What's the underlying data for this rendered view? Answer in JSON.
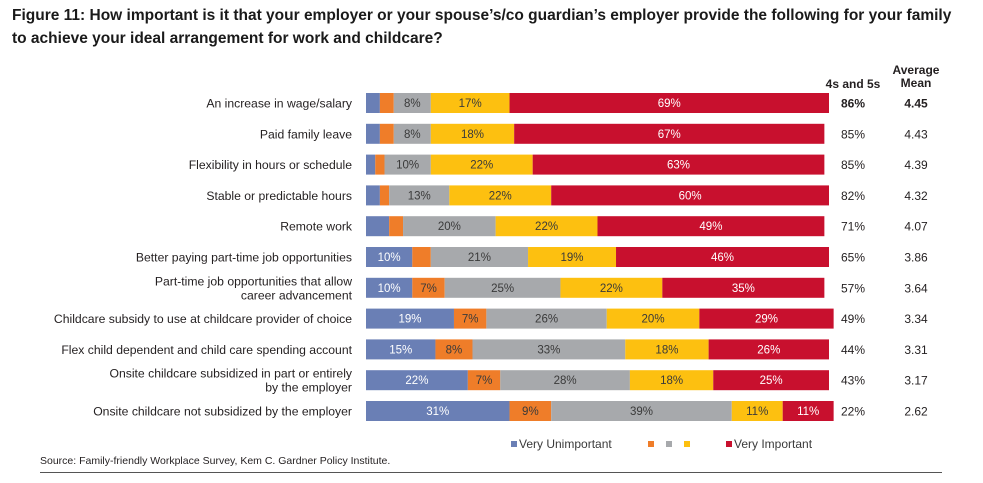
{
  "title": "Figure 11: How important is it that your employer or your spouse’s/co guardian’s employer provide the following for your family to achieve your ideal arrangement for work and childcare?",
  "source": "Source: Family-friendly Workplace Survey, Kem C. Gardner Policy Institute.",
  "colors": {
    "level1": "#6a7fb5",
    "level2": "#ef7d29",
    "level3": "#a7a9ac",
    "level4": "#fdc010",
    "level5": "#c8102e"
  },
  "chart_data": {
    "type": "bar",
    "orientation": "horizontal",
    "stacked": true,
    "percent_scale": [
      0,
      100
    ],
    "columns": {
      "top2": "4s and 5s",
      "mean": "Average Mean"
    },
    "legend": {
      "low": "Very Unimportant",
      "high": "Very Important"
    },
    "rows": [
      {
        "label": "An increase in wage/salary",
        "values": [
          3,
          3,
          8,
          17,
          69
        ],
        "labels": [
          "",
          "",
          "8%",
          "17%",
          "69%"
        ],
        "top2": "86%",
        "mean": "4.45",
        "bold": true
      },
      {
        "label": "Paid family leave",
        "values": [
          3,
          3,
          8,
          18,
          67
        ],
        "labels": [
          "",
          "",
          "8%",
          "18%",
          "67%"
        ],
        "top2": "85%",
        "mean": "4.43"
      },
      {
        "label": "Flexibility in hours or schedule",
        "values": [
          2,
          2,
          10,
          22,
          63
        ],
        "labels": [
          "",
          "",
          "10%",
          "22%",
          "63%"
        ],
        "top2": "85%",
        "mean": "4.39"
      },
      {
        "label": "Stable or predictable hours",
        "values": [
          3,
          2,
          13,
          22,
          60
        ],
        "labels": [
          "",
          "",
          "13%",
          "22%",
          "60%"
        ],
        "top2": "82%",
        "mean": "4.32"
      },
      {
        "label": "Remote work",
        "values": [
          5,
          3,
          20,
          22,
          49
        ],
        "labels": [
          "",
          "",
          "20%",
          "22%",
          "49%"
        ],
        "top2": "71%",
        "mean": "4.07"
      },
      {
        "label": "Better paying part-time job opportunities",
        "values": [
          10,
          4,
          21,
          19,
          46
        ],
        "labels": [
          "10%",
          "",
          "21%",
          "19%",
          "46%"
        ],
        "top2": "65%",
        "mean": "3.86"
      },
      {
        "label": "Part-time job opportunities that allow\ncareer advancement",
        "values": [
          10,
          7,
          25,
          22,
          35
        ],
        "labels": [
          "10%",
          "7%",
          "25%",
          "22%",
          "35%"
        ],
        "top2": "57%",
        "mean": "3.64"
      },
      {
        "label": "Childcare subsidy to use at childcare provider of choice",
        "values": [
          19,
          7,
          26,
          20,
          29
        ],
        "labels": [
          "19%",
          "7%",
          "26%",
          "20%",
          "29%"
        ],
        "top2": "49%",
        "mean": "3.34"
      },
      {
        "label": "Flex child dependent and child care spending account",
        "values": [
          15,
          8,
          33,
          18,
          26
        ],
        "labels": [
          "15%",
          "8%",
          "33%",
          "18%",
          "26%"
        ],
        "top2": "44%",
        "mean": "3.31"
      },
      {
        "label": "Onsite childcare subsidized in part or entirely\nby the employer",
        "values": [
          22,
          7,
          28,
          18,
          25
        ],
        "labels": [
          "22%",
          "7%",
          "28%",
          "18%",
          "25%"
        ],
        "top2": "43%",
        "mean": "3.17"
      },
      {
        "label": "Onsite childcare not subsidized by the employer",
        "values": [
          31,
          9,
          39,
          11,
          11
        ],
        "labels": [
          "31%",
          "9%",
          "39%",
          "11%",
          "11%"
        ],
        "top2": "22%",
        "mean": "2.62"
      }
    ]
  }
}
